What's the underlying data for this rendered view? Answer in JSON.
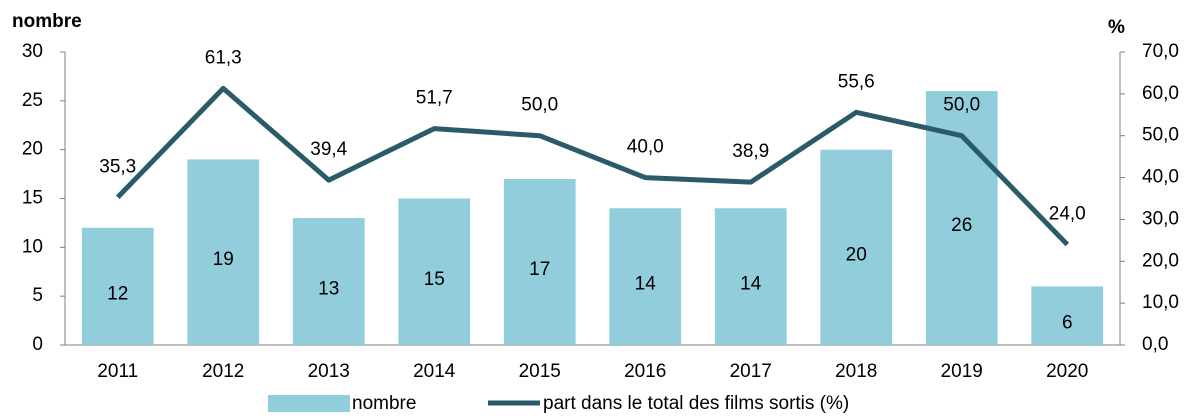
{
  "chart_data": {
    "type": "bar-line",
    "y_label": "nombre",
    "y2_label": "%",
    "categories": [
      "2011",
      "2012",
      "2013",
      "2014",
      "2015",
      "2016",
      "2017",
      "2018",
      "2019",
      "2020"
    ],
    "series": [
      {
        "name": "nombre",
        "type": "bar",
        "color": "#92cddc",
        "values": [
          12,
          19,
          13,
          15,
          17,
          14,
          14,
          20,
          26,
          6
        ]
      },
      {
        "name": "part dans le total des films sortis (%)",
        "type": "line",
        "axis": "y2",
        "color": "#2b5b69",
        "values": [
          35.3,
          61.3,
          39.4,
          51.7,
          50.0,
          40.0,
          38.9,
          55.6,
          50.0,
          24.0
        ],
        "value_labels": [
          "35,3",
          "61,3",
          "39,4",
          "51,7",
          "50,0",
          "40,0",
          "38,9",
          "55,6",
          "50,0",
          "24,0"
        ]
      }
    ],
    "ylim": [
      0,
      30
    ],
    "yticks": [
      0,
      5,
      10,
      15,
      20,
      25,
      30
    ],
    "y2lim": [
      0,
      70
    ],
    "y2ticks": [
      {
        "value": 0,
        "label": "0,0"
      },
      {
        "value": 10,
        "label": "10,0"
      },
      {
        "value": 20,
        "label": "20,0"
      },
      {
        "value": 30,
        "label": "30,0"
      },
      {
        "value": 40,
        "label": "40,0"
      },
      {
        "value": 50,
        "label": "50,0"
      },
      {
        "value": 60,
        "label": "60,0"
      },
      {
        "value": 70,
        "label": "70,0"
      }
    ]
  }
}
